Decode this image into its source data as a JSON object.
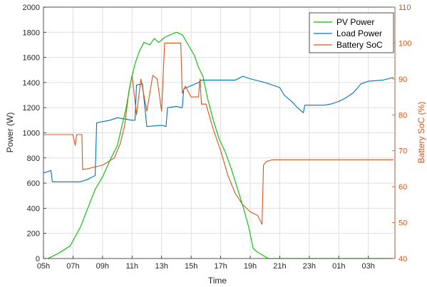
{
  "chart_data": {
    "type": "line",
    "xlabel": "Time",
    "ylabel_left": "Power (W)",
    "ylabel_right": "Battery SoC (%)",
    "x_ticks": [
      "05h",
      "07h",
      "09h",
      "11h",
      "13h",
      "15h",
      "17h",
      "19h",
      "21h",
      "23h",
      "01h",
      "03h"
    ],
    "xlim_hours": [
      5,
      28.8
    ],
    "ylim_left": [
      0,
      2000
    ],
    "ylim_right": [
      40,
      110
    ],
    "y_ticks_left": [
      0,
      200,
      400,
      600,
      800,
      1000,
      1200,
      1400,
      1600,
      1800,
      2000
    ],
    "y_ticks_right": [
      40,
      50,
      60,
      70,
      80,
      90,
      100,
      110
    ],
    "grid": true,
    "legend_position": "top-right",
    "colors": {
      "pv": "#00c000",
      "load": "#0072bd",
      "soc": "#d95319",
      "axis_left": "#262626",
      "axis_right": "#d95319"
    },
    "series": [
      {
        "name": "PV Power",
        "axis": "left",
        "color": "#00c000",
        "points": [
          [
            5.3,
            0
          ],
          [
            6.0,
            40
          ],
          [
            6.8,
            100
          ],
          [
            7.5,
            250
          ],
          [
            8.0,
            400
          ],
          [
            8.5,
            550
          ],
          [
            9.0,
            650
          ],
          [
            9.5,
            780
          ],
          [
            10.0,
            900
          ],
          [
            10.3,
            1050
          ],
          [
            10.6,
            1200
          ],
          [
            10.9,
            1400
          ],
          [
            11.2,
            1550
          ],
          [
            11.5,
            1650
          ],
          [
            11.8,
            1720
          ],
          [
            12.2,
            1700
          ],
          [
            12.5,
            1750
          ],
          [
            12.8,
            1720
          ],
          [
            13.2,
            1760
          ],
          [
            13.6,
            1780
          ],
          [
            14.0,
            1800
          ],
          [
            14.4,
            1780
          ],
          [
            14.8,
            1700
          ],
          [
            15.2,
            1620
          ],
          [
            15.5,
            1520
          ],
          [
            15.8,
            1450
          ],
          [
            16.1,
            1280
          ],
          [
            16.5,
            1100
          ],
          [
            16.9,
            950
          ],
          [
            17.3,
            850
          ],
          [
            17.7,
            720
          ],
          [
            18.1,
            570
          ],
          [
            18.5,
            420
          ],
          [
            18.9,
            250
          ],
          [
            19.2,
            80
          ],
          [
            19.5,
            50
          ],
          [
            19.8,
            30
          ],
          [
            20.2,
            0
          ],
          [
            28.8,
            0
          ]
        ]
      },
      {
        "name": "Load Power",
        "axis": "left",
        "color": "#0072bd",
        "points": [
          [
            5.0,
            680
          ],
          [
            5.5,
            700
          ],
          [
            5.6,
            610
          ],
          [
            7.5,
            610
          ],
          [
            8.0,
            630
          ],
          [
            8.5,
            660
          ],
          [
            8.6,
            1080
          ],
          [
            9.5,
            1100
          ],
          [
            10.0,
            1120
          ],
          [
            10.5,
            1110
          ],
          [
            11.0,
            1100
          ],
          [
            11.2,
            1100
          ],
          [
            11.3,
            1380
          ],
          [
            11.7,
            1390
          ],
          [
            12.0,
            1050
          ],
          [
            13.0,
            1060
          ],
          [
            13.3,
            1050
          ],
          [
            13.4,
            1200
          ],
          [
            14.0,
            1210
          ],
          [
            14.4,
            1200
          ],
          [
            14.5,
            1350
          ],
          [
            15.5,
            1400
          ],
          [
            15.7,
            1420
          ],
          [
            17.0,
            1420
          ],
          [
            18.0,
            1420
          ],
          [
            18.5,
            1450
          ],
          [
            19.0,
            1430
          ],
          [
            20.0,
            1400
          ],
          [
            20.5,
            1380
          ],
          [
            21.0,
            1360
          ],
          [
            21.3,
            1300
          ],
          [
            21.8,
            1250
          ],
          [
            22.2,
            1200
          ],
          [
            22.6,
            1160
          ],
          [
            22.7,
            1220
          ],
          [
            24.0,
            1220
          ],
          [
            24.5,
            1230
          ],
          [
            25.0,
            1250
          ],
          [
            25.5,
            1280
          ],
          [
            26.0,
            1320
          ],
          [
            26.5,
            1390
          ],
          [
            27.0,
            1410
          ],
          [
            28.0,
            1420
          ],
          [
            28.7,
            1440
          ]
        ]
      },
      {
        "name": "Battery SoC",
        "axis": "right",
        "color": "#d95319",
        "points": [
          [
            5.0,
            74.5
          ],
          [
            7.0,
            74.5
          ],
          [
            7.15,
            71.5
          ],
          [
            7.25,
            74.5
          ],
          [
            7.6,
            74.5
          ],
          [
            7.65,
            64.8
          ],
          [
            8.0,
            65
          ],
          [
            9.0,
            66
          ],
          [
            9.8,
            68
          ],
          [
            10.2,
            72
          ],
          [
            10.5,
            77
          ],
          [
            10.8,
            87
          ],
          [
            11.0,
            91
          ],
          [
            11.3,
            80
          ],
          [
            11.6,
            90
          ],
          [
            12.0,
            81
          ],
          [
            12.4,
            91
          ],
          [
            12.7,
            90
          ],
          [
            13.0,
            81
          ],
          [
            13.2,
            100
          ],
          [
            14.0,
            100
          ],
          [
            14.3,
            100
          ],
          [
            14.4,
            86
          ],
          [
            14.6,
            88
          ],
          [
            15.0,
            85
          ],
          [
            15.5,
            85
          ],
          [
            15.6,
            90
          ],
          [
            15.7,
            83
          ],
          [
            16.0,
            83
          ],
          [
            16.5,
            76
          ],
          [
            17.0,
            70
          ],
          [
            17.5,
            63
          ],
          [
            18.0,
            58
          ],
          [
            18.5,
            55
          ],
          [
            19.0,
            53
          ],
          [
            19.5,
            52
          ],
          [
            19.8,
            49.5
          ],
          [
            19.9,
            66
          ],
          [
            20.1,
            67
          ],
          [
            20.5,
            67.5
          ],
          [
            28.7,
            67.5
          ]
        ]
      }
    ]
  }
}
